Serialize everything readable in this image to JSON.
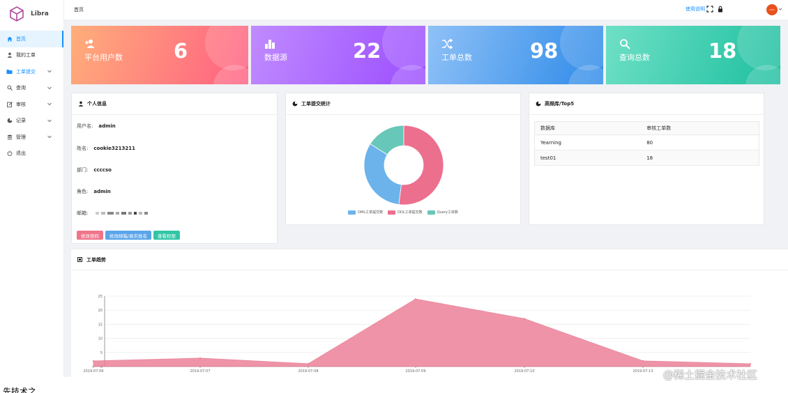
{
  "app": {
    "name": "Libra"
  },
  "sidebar": {
    "items": [
      {
        "label": "首页",
        "icon": "home-icon"
      },
      {
        "label": "我的工单",
        "icon": "user-icon"
      },
      {
        "label": "工单提交",
        "icon": "folder-icon"
      },
      {
        "label": "查询",
        "icon": "search-icon"
      },
      {
        "label": "审核",
        "icon": "edit-icon"
      },
      {
        "label": "记录",
        "icon": "pie-icon"
      },
      {
        "label": "管理",
        "icon": "database-icon"
      },
      {
        "label": "退出",
        "icon": "logout-icon"
      }
    ]
  },
  "header": {
    "breadcrumb": "首页",
    "help_label": "使用说明",
    "avatar_text": "Libra"
  },
  "stats": [
    {
      "label": "平台用户数",
      "value": "6",
      "icon": "user-add-icon",
      "color_from": "#ffae7a",
      "color_to": "#ff5f82"
    },
    {
      "label": "数据源",
      "value": "22",
      "icon": "bar-chart-icon",
      "color_from": "#c08bff",
      "color_to": "#9b4dff"
    },
    {
      "label": "工单总数",
      "value": "98",
      "icon": "shuffle-icon",
      "color_from": "#8fc1f7",
      "color_to": "#2d8ae8"
    },
    {
      "label": "查询总数",
      "value": "18",
      "icon": "search-icon",
      "color_from": "#6fe0c6",
      "color_to": "#1dbf9f"
    }
  ],
  "profile": {
    "title": "个人信息",
    "rows": [
      {
        "label": "用户名:",
        "value": "admin"
      },
      {
        "label": "姓名:",
        "value": "cookie3213211"
      },
      {
        "label": "部门:",
        "value": "ccccso"
      },
      {
        "label": "角色:",
        "value": "admin"
      },
      {
        "label": "邮箱:",
        "value": ""
      }
    ],
    "buttons": [
      {
        "label": "修改密码",
        "color": "#f0758a"
      },
      {
        "label": "修改邮箱/真实姓名",
        "color": "#5aa5ea"
      },
      {
        "label": "查看权限",
        "color": "#33c6a6"
      }
    ]
  },
  "order_stats": {
    "title": "工单提交统计",
    "chart_data": {
      "type": "pie",
      "labels": [
        "DML工单提交数",
        "DDL工单提交数",
        "Query工单数"
      ],
      "values": [
        32,
        52,
        16
      ],
      "colors": [
        "#6cb3eb",
        "#ec6f8e",
        "#67c7b8"
      ]
    }
  },
  "top5": {
    "title": "高频库/Top5",
    "columns": [
      "数据库",
      "审核工单数"
    ],
    "rows": [
      [
        "Yearning",
        "80"
      ],
      [
        "test01",
        "18"
      ]
    ]
  },
  "trend": {
    "title": "工单趋势",
    "chart_data": {
      "type": "area",
      "x": [
        "2019-07-06",
        "2019-07-07",
        "2019-07-08",
        "2019-07-09",
        "2019-07-10",
        "2019-07-13",
        ""
      ],
      "values": [
        2,
        3,
        1,
        24,
        17,
        2,
        1
      ],
      "yticks": [
        "0",
        "5",
        "10",
        "15",
        "20",
        "25"
      ],
      "ylim": [
        0,
        25
      ],
      "color": "#ec7a93"
    }
  },
  "watermark": "@稀土掘金技术社区",
  "footer_text": "先技术之"
}
